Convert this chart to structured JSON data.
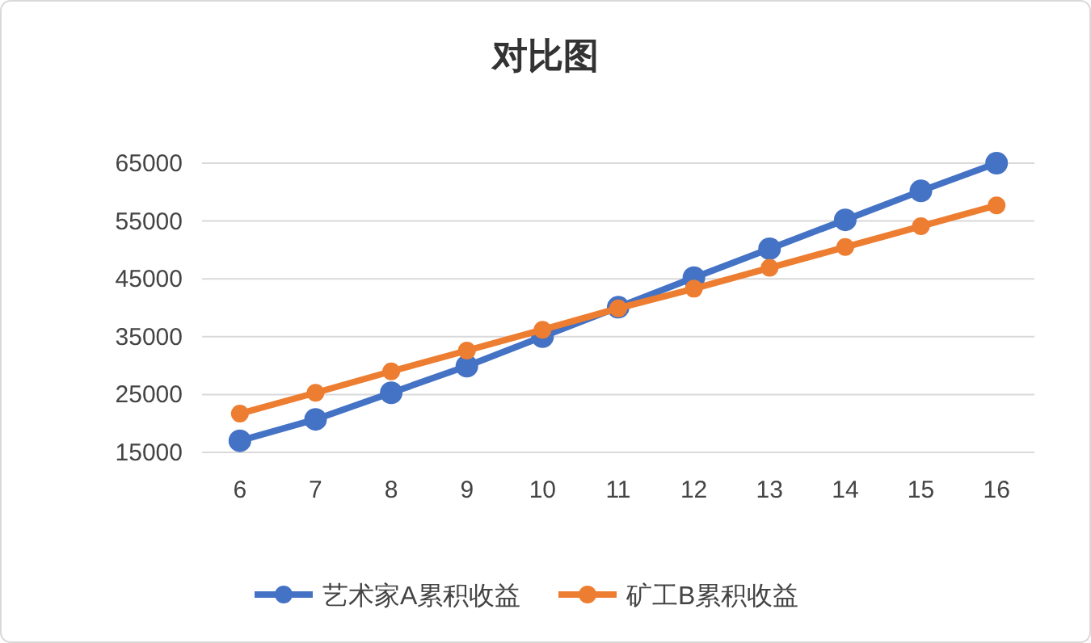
{
  "chart_data": {
    "type": "line",
    "title": "对比图",
    "categories": [
      "6",
      "7",
      "8",
      "9",
      "10",
      "11",
      "12",
      "13",
      "14",
      "15",
      "16"
    ],
    "series": [
      {
        "name": "艺术家A累积收益",
        "color": "#4472c4",
        "values": [
          17000,
          20700,
          25300,
          29900,
          35000,
          40100,
          45200,
          50200,
          55200,
          60200,
          65000
        ]
      },
      {
        "name": "矿工B累积收益",
        "color": "#ed7d31",
        "values": [
          21700,
          25300,
          29000,
          32600,
          36200,
          39900,
          43300,
          46900,
          50500,
          54100,
          57700
        ]
      }
    ],
    "ylim": [
      15000,
      65000
    ],
    "yticks": [
      15000,
      25000,
      35000,
      45000,
      55000,
      65000
    ],
    "grid": "y",
    "legend": "bottom",
    "marker": "circle",
    "line_style": "solid"
  }
}
